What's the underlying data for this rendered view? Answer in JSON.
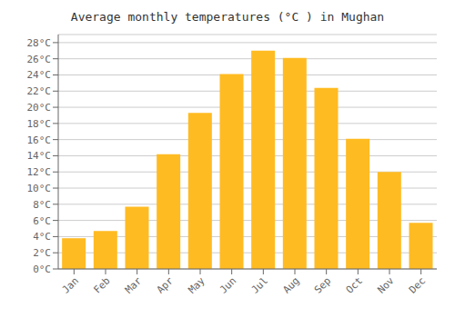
{
  "chart_data": {
    "type": "bar",
    "title": "Average monthly temperatures (°C ) in Mughan",
    "categories": [
      "Jan",
      "Feb",
      "Mar",
      "Apr",
      "May",
      "Jun",
      "Jul",
      "Aug",
      "Sep",
      "Oct",
      "Nov",
      "Dec"
    ],
    "values": [
      3.8,
      4.7,
      7.7,
      14.2,
      19.3,
      24.1,
      27.0,
      26.1,
      22.4,
      16.1,
      12.0,
      5.7
    ],
    "color": "#FFBB22",
    "ylim": [
      0,
      29
    ],
    "yticks": [
      {
        "value": 0,
        "label": "0°C"
      },
      {
        "value": 2,
        "label": "2°C"
      },
      {
        "value": 4,
        "label": "4°C"
      },
      {
        "value": 6,
        "label": "6°C"
      },
      {
        "value": 8,
        "label": "8°C"
      },
      {
        "value": 10,
        "label": "10°C"
      },
      {
        "value": 12,
        "label": "12°C"
      },
      {
        "value": 14,
        "label": "14°C"
      },
      {
        "value": 16,
        "label": "16°C"
      },
      {
        "value": 18,
        "label": "18°C"
      },
      {
        "value": 20,
        "label": "20°C"
      },
      {
        "value": 22,
        "label": "22°C"
      },
      {
        "value": 24,
        "label": "24°C"
      },
      {
        "value": 26,
        "label": "26°C"
      },
      {
        "value": 28,
        "label": "28°C"
      }
    ],
    "grid": true
  }
}
